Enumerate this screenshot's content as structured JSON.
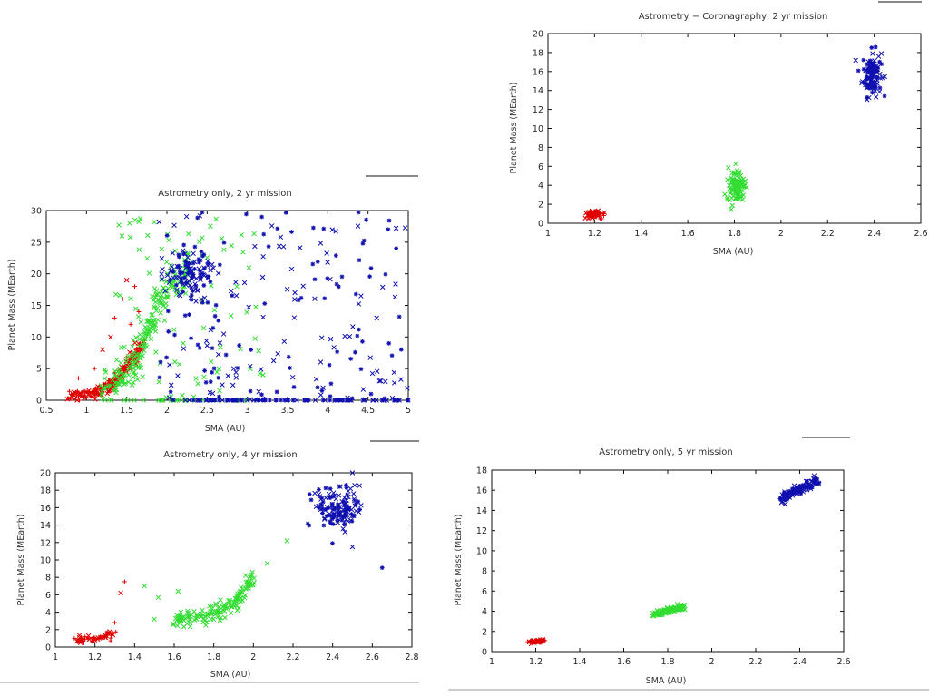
{
  "colors": {
    "red": "#e00000",
    "green": "#33dd33",
    "blue": "#1010b0"
  },
  "chart_data": [
    {
      "id": "coronagraphy",
      "type": "scatter",
      "title": "Astrometry − Coronagraphy, 2 yr mission",
      "xlabel": "SMA (AU)",
      "ylabel": "Planet Mass (MEarth)",
      "xlim": [
        1,
        2.6
      ],
      "ylim": [
        0,
        20
      ],
      "xticks": [
        "1",
        "1.2",
        "1.4",
        "1.6",
        "1.8",
        "2",
        "2.2",
        "2.4",
        "2.6"
      ],
      "yticks": [
        "0",
        "2",
        "4",
        "6",
        "8",
        "10",
        "12",
        "14",
        "16",
        "18",
        "20"
      ],
      "grid": false,
      "series": [
        {
          "color": "red",
          "cluster": {
            "x": 1.2,
            "y": 1.0,
            "sx": 0.02,
            "sy": 0.2,
            "n": 70
          }
        },
        {
          "color": "green",
          "cluster": {
            "x": 1.81,
            "y": 3.8,
            "sx": 0.02,
            "sy": 0.9,
            "n": 110
          }
        },
        {
          "color": "blue",
          "cluster": {
            "x": 2.39,
            "y": 15.8,
            "sx": 0.02,
            "sy": 1.2,
            "n": 120
          }
        }
      ]
    },
    {
      "id": "astrometry-2yr",
      "type": "scatter",
      "title": "Astrometry only, 2 yr mission",
      "xlabel": "SMA (AU)",
      "ylabel": "Planet Mass (MEarth)",
      "xlim": [
        0.5,
        5
      ],
      "ylim": [
        0,
        30
      ],
      "xticks": [
        "0.5",
        "1",
        "1.5",
        "2",
        "2.5",
        "3",
        "3.5",
        "4",
        "4.5",
        "5"
      ],
      "yticks": [
        "0",
        "5",
        "10",
        "15",
        "20",
        "25",
        "30"
      ],
      "grid": false,
      "series": [
        {
          "color": "red",
          "cluster": {
            "curve": [
              [
                0.8,
                0.5
              ],
              [
                1.0,
                0.8
              ],
              [
                1.2,
                1.5
              ],
              [
                1.4,
                3.5
              ],
              [
                1.55,
                6.0
              ],
              [
                1.7,
                9.0
              ]
            ],
            "n": 220,
            "jitter": 0.5
          },
          "outliers": [
            [
              1.1,
              5.0
            ],
            [
              1.2,
              8.0
            ],
            [
              1.35,
              13.0
            ],
            [
              1.45,
              16.0
            ],
            [
              1.5,
              19.0
            ],
            [
              1.6,
              18.0
            ],
            [
              1.55,
              12.0
            ],
            [
              1.3,
              10.0
            ],
            [
              0.9,
              3.5
            ],
            [
              1.65,
              14.0
            ]
          ]
        },
        {
          "color": "green",
          "cluster": {
            "curve": [
              [
                1.2,
                1.0
              ],
              [
                1.5,
                4.0
              ],
              [
                1.7,
                8.0
              ],
              [
                1.85,
                14.0
              ],
              [
                2.0,
                18.0
              ],
              [
                2.3,
                20.0
              ]
            ],
            "n": 200,
            "jitter": 1.6
          },
          "spread": {
            "x": [
              1.3,
              3.2
            ],
            "y": [
              0,
              30
            ],
            "n": 90
          },
          "floor": {
            "x": [
              1.4,
              3.0
            ],
            "n": 25
          }
        },
        {
          "color": "blue",
          "cluster": {
            "x": 2.3,
            "y": 20.0,
            "sx": 0.15,
            "sy": 2.0,
            "n": 100
          },
          "spread": {
            "x": [
              1.9,
              5.0
            ],
            "y": [
              0,
              30
            ],
            "n": 200
          },
          "floor": {
            "x": [
              2.2,
              5.0
            ],
            "n": 90
          }
        }
      ]
    },
    {
      "id": "astrometry-4yr",
      "type": "scatter",
      "title": "Astrometry only, 4 yr mission",
      "xlabel": "SMA (AU)",
      "ylabel": "Planet Mass (MEarth)",
      "xlim": [
        1,
        2.8
      ],
      "ylim": [
        0,
        20
      ],
      "xticks": [
        "1",
        "1.2",
        "1.4",
        "1.6",
        "1.8",
        "2",
        "2.2",
        "2.4",
        "2.6",
        "2.8"
      ],
      "yticks": [
        "0",
        "2",
        "4",
        "6",
        "8",
        "10",
        "12",
        "14",
        "16",
        "18",
        "20"
      ],
      "grid": false,
      "series": [
        {
          "color": "red",
          "cluster": {
            "curve": [
              [
                1.1,
                0.8
              ],
              [
                1.2,
                1.0
              ],
              [
                1.3,
                1.6
              ]
            ],
            "n": 60,
            "jitter": 0.2
          },
          "outliers": [
            [
              1.3,
              2.8
            ],
            [
              1.35,
              7.5
            ],
            [
              1.33,
              6.2
            ]
          ]
        },
        {
          "color": "green",
          "cluster": {
            "curve": [
              [
                1.6,
                3.0
              ],
              [
                1.7,
                3.5
              ],
              [
                1.8,
                4.0
              ],
              [
                1.9,
                5.0
              ],
              [
                1.95,
                6.5
              ],
              [
                2.0,
                8.0
              ]
            ],
            "n": 160,
            "jitter": 0.5
          },
          "outliers": [
            [
              1.45,
              7.0
            ],
            [
              1.52,
              5.7
            ],
            [
              1.62,
              6.4
            ],
            [
              2.07,
              9.6
            ],
            [
              2.17,
              12.2
            ],
            [
              1.5,
              3.2
            ]
          ]
        },
        {
          "color": "blue",
          "cluster": {
            "x": 2.42,
            "y": 16.0,
            "sx": 0.06,
            "sy": 1.3,
            "n": 140
          },
          "outliers": [
            [
              2.65,
              9.1
            ],
            [
              2.5,
              11.5
            ]
          ]
        }
      ]
    },
    {
      "id": "astrometry-5yr",
      "type": "scatter",
      "title": "Astrometry only, 5 yr mission",
      "xlabel": "SMA (AU)",
      "ylabel": "Planet Mass (MEarth)",
      "xlim": [
        1,
        2.6
      ],
      "ylim": [
        0,
        18
      ],
      "xticks": [
        "1",
        "1.2",
        "1.4",
        "1.6",
        "1.8",
        "2",
        "2.2",
        "2.4",
        "2.6"
      ],
      "yticks": [
        "0",
        "2",
        "4",
        "6",
        "8",
        "10",
        "12",
        "14",
        "16",
        "18"
      ],
      "grid": false,
      "series": [
        {
          "color": "red",
          "cluster": {
            "curve": [
              [
                1.18,
                0.95
              ],
              [
                1.23,
                1.05
              ]
            ],
            "n": 60,
            "jitter": 0.06
          }
        },
        {
          "color": "green",
          "cluster": {
            "curve": [
              [
                1.73,
                3.7
              ],
              [
                1.87,
                4.4
              ]
            ],
            "n": 110,
            "jitter": 0.12
          }
        },
        {
          "color": "blue",
          "cluster": {
            "curve": [
              [
                2.32,
                15.2
              ],
              [
                2.48,
                17.0
              ]
            ],
            "n": 120,
            "jitter": 0.25
          }
        }
      ]
    }
  ]
}
